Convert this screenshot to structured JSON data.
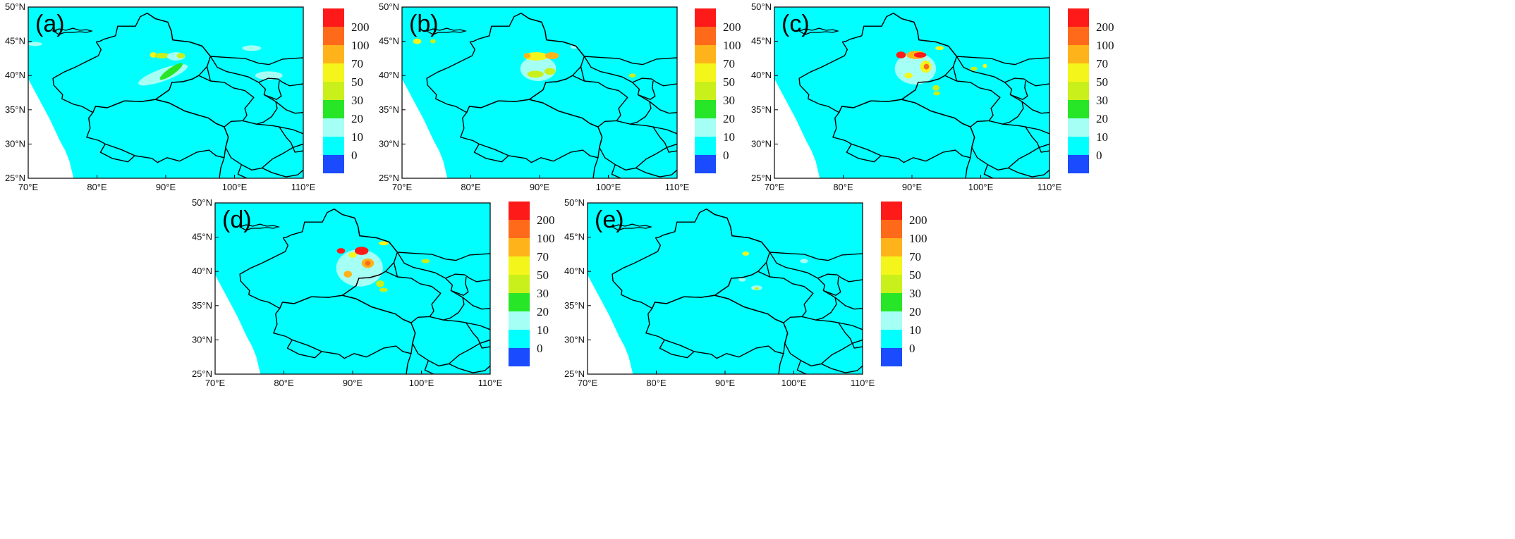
{
  "colors": {
    "background_field": "#00FFFF",
    "no_data": "#FFFFFF",
    "border": "#000000"
  },
  "legend": {
    "levels": [
      {
        "label": "200",
        "color": "#FF1A1A"
      },
      {
        "label": "100",
        "color": "#FF6A1A"
      },
      {
        "label": "70",
        "color": "#FFB31A"
      },
      {
        "label": "50",
        "color": "#F4F51A"
      },
      {
        "label": "30",
        "color": "#C9F01A"
      },
      {
        "label": "20",
        "color": "#27E627"
      },
      {
        "label": "10",
        "color": "#A6FFF5"
      },
      {
        "label": "0",
        "color": "#00FFFF"
      },
      {
        "label": "",
        "color": "#1A4BFF"
      }
    ]
  },
  "axes": {
    "x_ticks": [
      "70°E",
      "80°E",
      "90°E",
      "100°E",
      "110°E"
    ],
    "y_ticks": [
      "50°N",
      "45°N",
      "40°N",
      "35°N",
      "30°N",
      "25°N"
    ],
    "lon_range": [
      70,
      110
    ],
    "lat_range": [
      25,
      50
    ]
  },
  "panels": [
    {
      "id": "a",
      "label": "(a)",
      "patches": [
        {
          "lon": 89.6,
          "lat": 40.1,
          "rx": 3.8,
          "ry": 0.9,
          "rot": -20,
          "color": "#A6FFF5"
        },
        {
          "lon": 90.8,
          "lat": 40.6,
          "rx": 2.0,
          "ry": 0.5,
          "rot": -35,
          "color": "#27E627"
        },
        {
          "lon": 88.2,
          "lat": 43.0,
          "rx": 0.5,
          "ry": 0.4,
          "rot": 0,
          "color": "#F4F51A"
        },
        {
          "lon": 89.5,
          "lat": 42.9,
          "rx": 1.1,
          "ry": 0.4,
          "rot": 0,
          "color": "#C9F01A"
        },
        {
          "lon": 91.5,
          "lat": 42.8,
          "rx": 1.3,
          "ry": 0.6,
          "rot": 0,
          "color": "#A6FFF5"
        },
        {
          "lon": 92.2,
          "lat": 42.9,
          "rx": 0.6,
          "ry": 0.4,
          "rot": 0,
          "color": "#C9F01A"
        },
        {
          "lon": 105.0,
          "lat": 40.0,
          "rx": 2.0,
          "ry": 0.6,
          "rot": 0,
          "color": "#A6FFF5"
        },
        {
          "lon": 71.0,
          "lat": 44.6,
          "rx": 1.0,
          "ry": 0.3,
          "rot": 0,
          "color": "#A6FFF5"
        },
        {
          "lon": 102.5,
          "lat": 44.0,
          "rx": 1.4,
          "ry": 0.4,
          "rot": 0,
          "color": "#A6FFF5"
        }
      ]
    },
    {
      "id": "b",
      "label": "(b)",
      "patches": [
        {
          "lon": 89.8,
          "lat": 41.0,
          "rx": 2.6,
          "ry": 1.8,
          "rot": 0,
          "color": "#A6FFF5"
        },
        {
          "lon": 89.5,
          "lat": 42.8,
          "rx": 1.8,
          "ry": 0.6,
          "rot": 0,
          "color": "#F4F51A"
        },
        {
          "lon": 91.8,
          "lat": 42.9,
          "rx": 1.0,
          "ry": 0.5,
          "rot": 0,
          "color": "#FFB31A"
        },
        {
          "lon": 88.2,
          "lat": 42.9,
          "rx": 0.5,
          "ry": 0.4,
          "rot": 0,
          "color": "#FFB31A"
        },
        {
          "lon": 89.4,
          "lat": 40.2,
          "rx": 1.2,
          "ry": 0.5,
          "rot": 0,
          "color": "#C9F01A"
        },
        {
          "lon": 91.5,
          "lat": 40.6,
          "rx": 0.8,
          "ry": 0.5,
          "rot": 0,
          "color": "#C9F01A"
        },
        {
          "lon": 72.2,
          "lat": 45.0,
          "rx": 0.6,
          "ry": 0.4,
          "rot": 0,
          "color": "#F4F51A"
        },
        {
          "lon": 74.5,
          "lat": 45.0,
          "rx": 0.4,
          "ry": 0.3,
          "rot": 0,
          "color": "#C9F01A"
        },
        {
          "lon": 103.5,
          "lat": 40.0,
          "rx": 0.5,
          "ry": 0.3,
          "rot": 0,
          "color": "#C9F01A"
        },
        {
          "lon": 95.0,
          "lat": 44.2,
          "rx": 0.5,
          "ry": 0.3,
          "rot": 0,
          "color": "#A6FFF5"
        }
      ]
    },
    {
      "id": "c",
      "label": "(c)",
      "patches": [
        {
          "lon": 90.5,
          "lat": 41.0,
          "rx": 3.0,
          "ry": 2.3,
          "rot": 0,
          "color": "#A6FFF5"
        },
        {
          "lon": 88.4,
          "lat": 43.0,
          "rx": 0.7,
          "ry": 0.5,
          "rot": 0,
          "color": "#FF1A1A"
        },
        {
          "lon": 90.6,
          "lat": 43.0,
          "rx": 1.4,
          "ry": 0.6,
          "rot": 0,
          "color": "#FFB31A"
        },
        {
          "lon": 91.2,
          "lat": 43.0,
          "rx": 0.9,
          "ry": 0.4,
          "rot": 0,
          "color": "#FF1A1A"
        },
        {
          "lon": 92.0,
          "lat": 41.3,
          "rx": 0.8,
          "ry": 0.9,
          "rot": 0,
          "color": "#F4F51A"
        },
        {
          "lon": 92.1,
          "lat": 41.3,
          "rx": 0.4,
          "ry": 0.4,
          "rot": 0,
          "color": "#FF6A1A"
        },
        {
          "lon": 89.5,
          "lat": 40.0,
          "rx": 0.6,
          "ry": 0.4,
          "rot": 0,
          "color": "#F4F51A"
        },
        {
          "lon": 94.0,
          "lat": 44.0,
          "rx": 0.6,
          "ry": 0.3,
          "rot": 0,
          "color": "#F4F51A"
        },
        {
          "lon": 93.5,
          "lat": 38.2,
          "rx": 0.5,
          "ry": 0.4,
          "rot": 0,
          "color": "#C9F01A"
        },
        {
          "lon": 93.6,
          "lat": 37.4,
          "rx": 0.5,
          "ry": 0.3,
          "rot": 0,
          "color": "#C9F01A"
        },
        {
          "lon": 99.0,
          "lat": 41.0,
          "rx": 0.5,
          "ry": 0.3,
          "rot": 0,
          "color": "#C9F01A"
        },
        {
          "lon": 100.6,
          "lat": 41.4,
          "rx": 0.3,
          "ry": 0.3,
          "rot": 0,
          "color": "#F4F51A"
        }
      ]
    },
    {
      "id": "d",
      "label": "(d)",
      "patches": [
        {
          "lon": 91.0,
          "lat": 40.5,
          "rx": 3.4,
          "ry": 2.7,
          "rot": 0,
          "color": "#A6FFF5"
        },
        {
          "lon": 88.3,
          "lat": 43.0,
          "rx": 0.6,
          "ry": 0.4,
          "rot": 0,
          "color": "#FF1A1A"
        },
        {
          "lon": 91.3,
          "lat": 43.0,
          "rx": 1.0,
          "ry": 0.6,
          "rot": 0,
          "color": "#FF1A1A"
        },
        {
          "lon": 90.0,
          "lat": 42.4,
          "rx": 0.6,
          "ry": 0.4,
          "rot": 0,
          "color": "#F4F51A"
        },
        {
          "lon": 92.2,
          "lat": 41.2,
          "rx": 0.9,
          "ry": 0.7,
          "rot": 0,
          "color": "#FFB31A"
        },
        {
          "lon": 92.2,
          "lat": 41.2,
          "rx": 0.4,
          "ry": 0.35,
          "rot": 0,
          "color": "#FF6A1A"
        },
        {
          "lon": 89.3,
          "lat": 39.6,
          "rx": 0.6,
          "ry": 0.5,
          "rot": 0,
          "color": "#FFB31A"
        },
        {
          "lon": 94.5,
          "lat": 44.1,
          "rx": 0.7,
          "ry": 0.3,
          "rot": 0,
          "color": "#F4F51A"
        },
        {
          "lon": 94.0,
          "lat": 38.2,
          "rx": 0.6,
          "ry": 0.5,
          "rot": 0,
          "color": "#C9F01A"
        },
        {
          "lon": 94.5,
          "lat": 37.3,
          "rx": 0.6,
          "ry": 0.3,
          "rot": 0,
          "color": "#C9F01A"
        },
        {
          "lon": 100.6,
          "lat": 41.5,
          "rx": 0.6,
          "ry": 0.3,
          "rot": 0,
          "color": "#C9F01A"
        }
      ]
    },
    {
      "id": "e",
      "label": "(e)",
      "patches": [
        {
          "lon": 93.0,
          "lat": 42.6,
          "rx": 0.5,
          "ry": 0.3,
          "rot": 0,
          "color": "#F4F51A"
        },
        {
          "lon": 94.6,
          "lat": 37.6,
          "rx": 0.8,
          "ry": 0.35,
          "rot": 0,
          "color": "#A6FFF5"
        },
        {
          "lon": 94.6,
          "lat": 37.5,
          "rx": 0.35,
          "ry": 0.2,
          "rot": 0,
          "color": "#C9F01A"
        },
        {
          "lon": 92.5,
          "lat": 38.8,
          "rx": 0.5,
          "ry": 0.3,
          "rot": 0,
          "color": "#A6FFF5"
        },
        {
          "lon": 101.5,
          "lat": 41.5,
          "rx": 0.6,
          "ry": 0.3,
          "rot": 0,
          "color": "#A6FFF5"
        }
      ]
    }
  ]
}
